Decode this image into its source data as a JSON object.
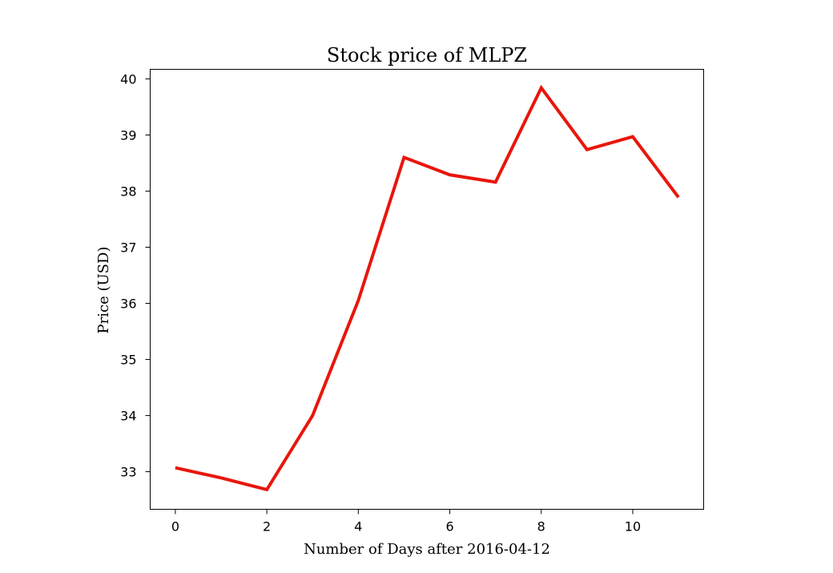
{
  "chart_data": {
    "type": "line",
    "title": "Stock price of MLPZ",
    "xlabel": "Number of Days after 2016-04-12",
    "ylabel": "Price (USD)",
    "x": [
      0,
      1,
      2,
      3,
      4,
      5,
      6,
      7,
      8,
      9,
      10,
      11
    ],
    "series": [
      {
        "values": [
          33.07,
          32.89,
          32.68,
          34.0,
          36.05,
          38.6,
          38.29,
          38.16,
          39.84,
          38.74,
          38.97,
          37.89
        ],
        "color": "#e8160c"
      }
    ],
    "xlim": [
      -0.55,
      11.55
    ],
    "ylim": [
      32.33,
      40.17
    ],
    "xticks": [
      0,
      2,
      4,
      6,
      8,
      10
    ],
    "yticks": [
      33,
      34,
      35,
      36,
      37,
      38,
      39,
      40
    ],
    "grid": false,
    "legend": "none"
  }
}
